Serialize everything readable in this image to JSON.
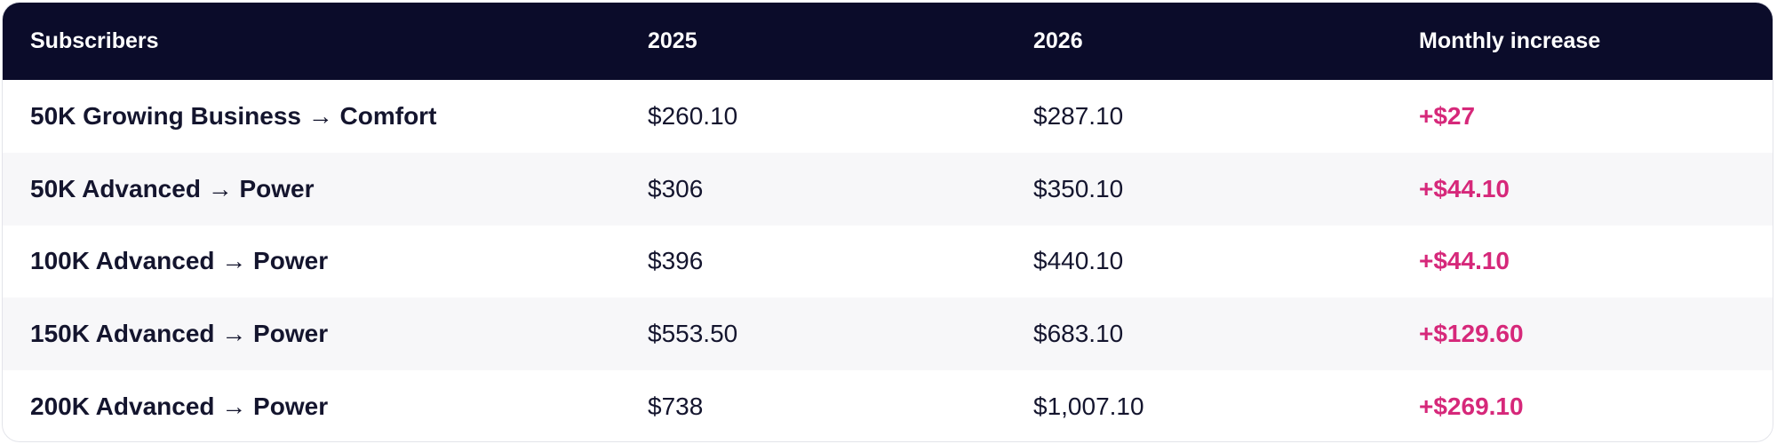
{
  "table": {
    "header": [
      "Subscribers",
      "2025",
      "2026",
      "Monthly increase"
    ],
    "rows": [
      [
        "50K Growing Business → Comfort",
        "$260.10",
        "$287.10",
        "+$27"
      ],
      [
        "50K Advanced → Power",
        "$306",
        "$350.10",
        "+$44.10"
      ],
      [
        "100K Advanced → Power",
        "$396",
        "$440.10",
        "+$44.10"
      ],
      [
        "150K Advanced → Power",
        "$553.50",
        "$683.10",
        "+$129.60"
      ],
      [
        "200K Advanced → Power",
        "$738",
        "$1,007.10",
        "+$269.10"
      ]
    ]
  }
}
